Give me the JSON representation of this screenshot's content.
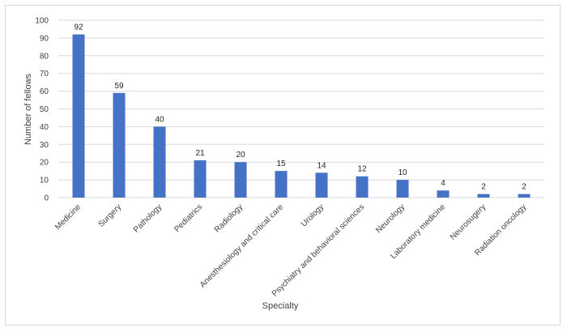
{
  "chart_data": {
    "type": "bar",
    "categories": [
      "Medicine",
      "Surgery",
      "Pathology",
      "Pediatrics",
      "Radiology",
      "Anesthesiology and critical care",
      "Urology",
      "Psychiatry and behavioral sciences",
      "Neurology",
      "Laboratory medicine",
      "Neurosugery",
      "Radiation oncology"
    ],
    "values": [
      92,
      59,
      40,
      21,
      20,
      15,
      14,
      12,
      10,
      4,
      2,
      2
    ],
    "xlabel": "Specialty",
    "ylabel": "Number of fellows",
    "ylim": [
      0,
      100
    ],
    "yticks": [
      0,
      10,
      20,
      30,
      40,
      50,
      60,
      70,
      80,
      90,
      100
    ],
    "grid": true,
    "data_labels": true,
    "bar_color": "#4472c4",
    "grid_color": "#d9d9d9"
  }
}
